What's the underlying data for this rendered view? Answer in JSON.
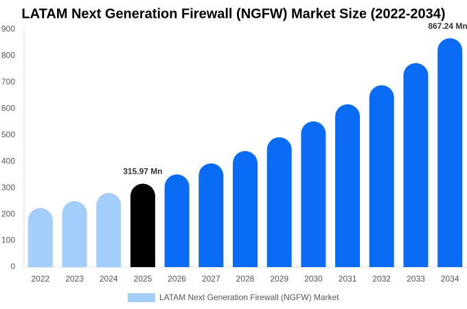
{
  "chart_data": {
    "type": "bar",
    "title": "LATAM Next Generation Firewall (NGFW) Market Size (2022-2034)",
    "categories": [
      "2022",
      "2023",
      "2024",
      "2025",
      "2026",
      "2027",
      "2028",
      "2029",
      "2030",
      "2031",
      "2032",
      "2033",
      "2034"
    ],
    "series": [
      {
        "name": "LATAM Next Generation Firewall (NGFW) Market",
        "color": "#a3cdfb",
        "values": [
          224,
          250,
          281,
          315.97,
          351,
          393,
          440,
          492,
          552,
          617,
          689,
          773,
          867.24
        ],
        "value_labels": [
          null,
          null,
          null,
          "315.97 Mn",
          null,
          null,
          null,
          null,
          null,
          null,
          null,
          null,
          "867.24 Mn"
        ],
        "colors": [
          "#a3cdfb",
          "#a3cdfb",
          "#a3cdfb",
          "#000000",
          "#0a6cf5",
          "#0a6cf5",
          "#0a6cf5",
          "#0a6cf5",
          "#0a6cf5",
          "#0a6cf5",
          "#0a6cf5",
          "#0a6cf5",
          "#0a6cf5"
        ]
      }
    ],
    "ylim": [
      0,
      900
    ],
    "yticks": [
      0,
      100,
      200,
      300,
      400,
      500,
      600,
      700,
      800,
      900
    ],
    "grid": false
  }
}
